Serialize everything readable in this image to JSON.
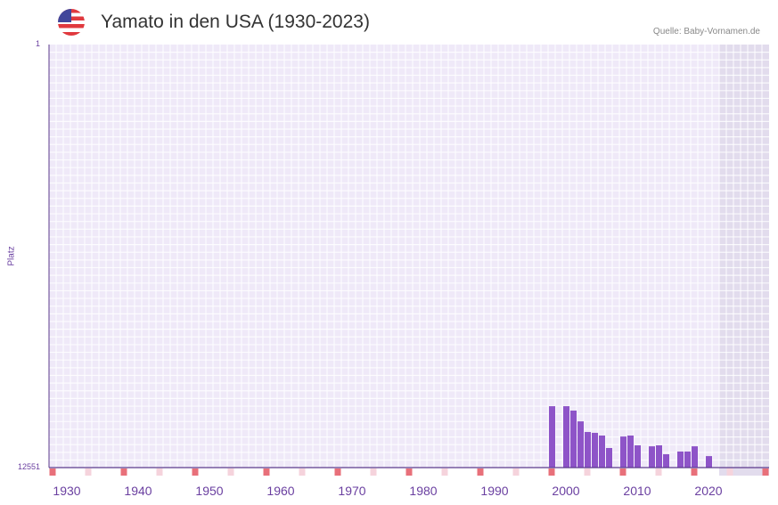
{
  "header": {
    "title": "Yamato in den USA (1930-2023)",
    "source": "Quelle: Baby-Vornamen.de",
    "flag_icon": "us-flag-icon"
  },
  "colors": {
    "bar": "#8e54c8",
    "grid_bg": "#efe9f8",
    "axis": "#5b3a8c",
    "marker_red": "#e8707a",
    "marker_pink": "#f5d3dc",
    "future": "#e2dced"
  },
  "chart_data": {
    "type": "bar",
    "title": "Yamato in den USA (1930-2023)",
    "ylabel": "Platz",
    "xlabel": "",
    "yticks": [
      "1",
      "12551"
    ],
    "ylim": [
      12551,
      1
    ],
    "xlim": [
      1928,
      2028
    ],
    "xticks": [
      1930,
      1940,
      1950,
      1960,
      1970,
      1980,
      1990,
      2000,
      2010,
      2020
    ],
    "future_from": 2022,
    "x": [
      1998,
      2000,
      2001,
      2002,
      2003,
      2004,
      2005,
      2006,
      2008,
      2009,
      2010,
      2012,
      2013,
      2014,
      2016,
      2017,
      2018,
      2020
    ],
    "values": [
      10730,
      10730,
      10860,
      11180,
      11495,
      11520,
      11600,
      11970,
      11630,
      11600,
      11890,
      11920,
      11890,
      12155,
      12075,
      12075,
      11920,
      12210
    ]
  }
}
